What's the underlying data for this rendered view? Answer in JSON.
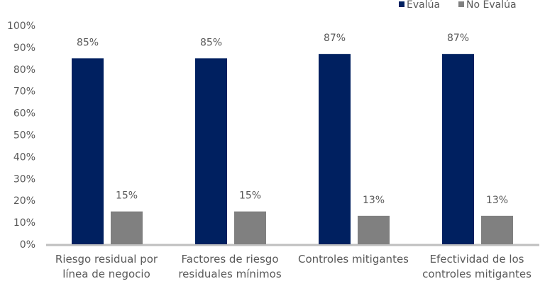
{
  "chart_data": {
    "type": "bar",
    "title": "",
    "xlabel": "",
    "ylabel": "",
    "ylim": [
      0,
      100
    ],
    "y_ticks": [
      "0%",
      "10%",
      "20%",
      "30%",
      "40%",
      "50%",
      "60%",
      "70%",
      "80%",
      "90%",
      "100%"
    ],
    "grid": false,
    "legend": "top-right",
    "categories": [
      [
        "Riesgo residual por",
        "línea de negocio"
      ],
      [
        "Factores de riesgo",
        "residuales mínimos"
      ],
      [
        "Controles mitigantes"
      ],
      [
        "Efectividad de los",
        "controles mitigantes"
      ]
    ],
    "series": [
      {
        "name": "Evalúa",
        "color": "#002060",
        "values": [
          85,
          85,
          87,
          87
        ],
        "labels": [
          "85%",
          "85%",
          "87%",
          "87%"
        ]
      },
      {
        "name": "No Evalúa",
        "color": "#808080",
        "values": [
          15,
          15,
          13,
          13
        ],
        "labels": [
          "15%",
          "15%",
          "13%",
          "13%"
        ]
      }
    ]
  }
}
